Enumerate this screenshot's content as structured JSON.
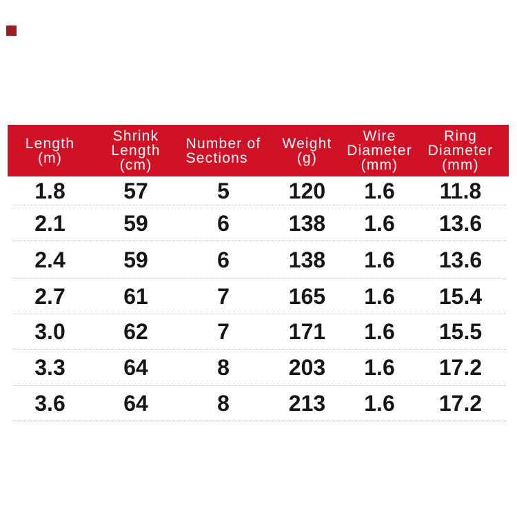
{
  "page": {
    "background": "#ffffff"
  },
  "decor": {
    "corner_square_color": "#9c1d22"
  },
  "table": {
    "header": {
      "bg_color": "#d01126",
      "text_color": "#ffffff",
      "columns": [
        {
          "label": "Length\n(m)"
        },
        {
          "label": "Shrink\nLength\n(cm)"
        },
        {
          "label": "Number of\nSections"
        },
        {
          "label": "Weight\n(g)"
        },
        {
          "label": "Wire\nDiameter\n(mm)"
        },
        {
          "label": "Ring\nDiameter\n(mm)"
        }
      ]
    },
    "body": {
      "text_color": "#161616",
      "separator_color": "#c4c4c4"
    },
    "rows": [
      [
        "1.8",
        "57",
        "5",
        "120",
        "1.6",
        "11.8"
      ],
      [
        "2.1",
        "59",
        "6",
        "138",
        "1.6",
        "13.6"
      ],
      [
        "2.4",
        "59",
        "6",
        "138",
        "1.6",
        "13.6"
      ],
      [
        "2.7",
        "61",
        "7",
        "165",
        "1.6",
        "15.4"
      ],
      [
        "3.0",
        "62",
        "7",
        "171",
        "1.6",
        "15.5"
      ],
      [
        "3.3",
        "64",
        "8",
        "203",
        "1.6",
        "17.2"
      ],
      [
        "3.6",
        "64",
        "8",
        "213",
        "1.6",
        "17.2"
      ]
    ]
  },
  "chart_data": {
    "type": "table",
    "title": "",
    "columns": [
      "Length (m)",
      "Shrink Length (cm)",
      "Number of Sections",
      "Weight (g)",
      "Wire Diameter (mm)",
      "Ring Diameter (mm)"
    ],
    "rows": [
      [
        1.8,
        57,
        5,
        120,
        1.6,
        11.8
      ],
      [
        2.1,
        59,
        6,
        138,
        1.6,
        13.6
      ],
      [
        2.4,
        59,
        6,
        138,
        1.6,
        13.6
      ],
      [
        2.7,
        61,
        7,
        165,
        1.6,
        15.4
      ],
      [
        3.0,
        62,
        7,
        171,
        1.6,
        15.5
      ],
      [
        3.3,
        64,
        8,
        203,
        1.6,
        17.2
      ],
      [
        3.6,
        64,
        8,
        213,
        1.6,
        17.2
      ]
    ],
    "layout": {
      "header_bg": "#d01126",
      "header_text": "#ffffff",
      "row_separator": "dotted"
    }
  }
}
